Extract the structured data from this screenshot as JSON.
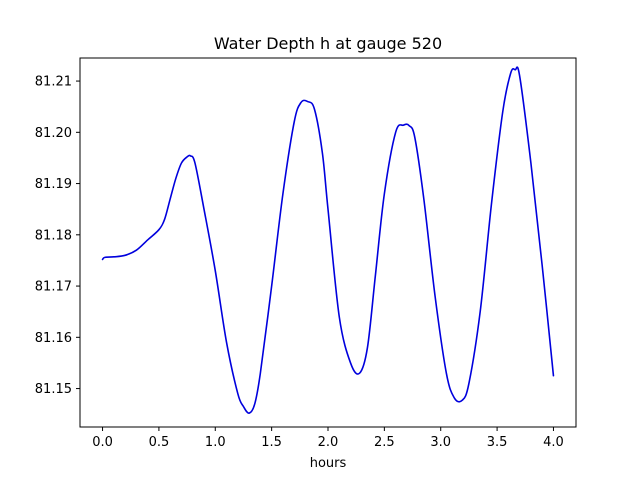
{
  "chart_data": {
    "type": "line",
    "title": "Water Depth h at gauge 520",
    "xlabel": "hours",
    "ylabel": "",
    "xlim": [
      -0.2,
      4.2
    ],
    "ylim": [
      81.1425,
      81.2145
    ],
    "xticks": [
      0.0,
      0.5,
      1.0,
      1.5,
      2.0,
      2.5,
      3.0,
      3.5,
      4.0
    ],
    "xtick_labels": [
      "0.0",
      "0.5",
      "1.0",
      "1.5",
      "2.0",
      "2.5",
      "3.0",
      "3.5",
      "4.0"
    ],
    "yticks": [
      81.15,
      81.16,
      81.17,
      81.18,
      81.19,
      81.2,
      81.21
    ],
    "ytick_labels": [
      "81.15",
      "81.16",
      "81.17",
      "81.18",
      "81.19",
      "81.20",
      "81.21"
    ],
    "grid": false,
    "line_color": "#0000dd",
    "series": [
      {
        "x": [
          0.0,
          0.02,
          0.1,
          0.2,
          0.3,
          0.4,
          0.5,
          0.55,
          0.6,
          0.65,
          0.7,
          0.75,
          0.78,
          0.82,
          0.9,
          1.0,
          1.1,
          1.2,
          1.25,
          1.3,
          1.35,
          1.4,
          1.5,
          1.6,
          1.7,
          1.76,
          1.82,
          1.88,
          1.95,
          2.0,
          2.1,
          2.2,
          2.28,
          2.35,
          2.42,
          2.5,
          2.6,
          2.67,
          2.72,
          2.77,
          2.85,
          2.95,
          3.05,
          3.12,
          3.19,
          3.25,
          3.35,
          3.45,
          3.55,
          3.62,
          3.66,
          3.7,
          3.8,
          3.9,
          4.0
        ],
        "y": [
          81.1752,
          81.1756,
          81.1757,
          81.176,
          81.177,
          81.179,
          81.181,
          81.183,
          81.187,
          81.191,
          81.194,
          81.1952,
          81.1954,
          81.194,
          81.185,
          81.173,
          81.159,
          81.149,
          81.1465,
          81.1452,
          81.147,
          81.153,
          81.17,
          81.188,
          81.202,
          81.2058,
          81.206,
          81.2045,
          81.196,
          81.185,
          81.164,
          81.155,
          81.153,
          81.158,
          81.172,
          81.188,
          81.2,
          81.2014,
          81.2013,
          81.199,
          81.187,
          81.168,
          81.153,
          81.1482,
          81.1477,
          81.151,
          81.165,
          81.186,
          81.204,
          81.2115,
          81.2122,
          81.211,
          81.194,
          81.174,
          81.1525
        ]
      }
    ]
  }
}
